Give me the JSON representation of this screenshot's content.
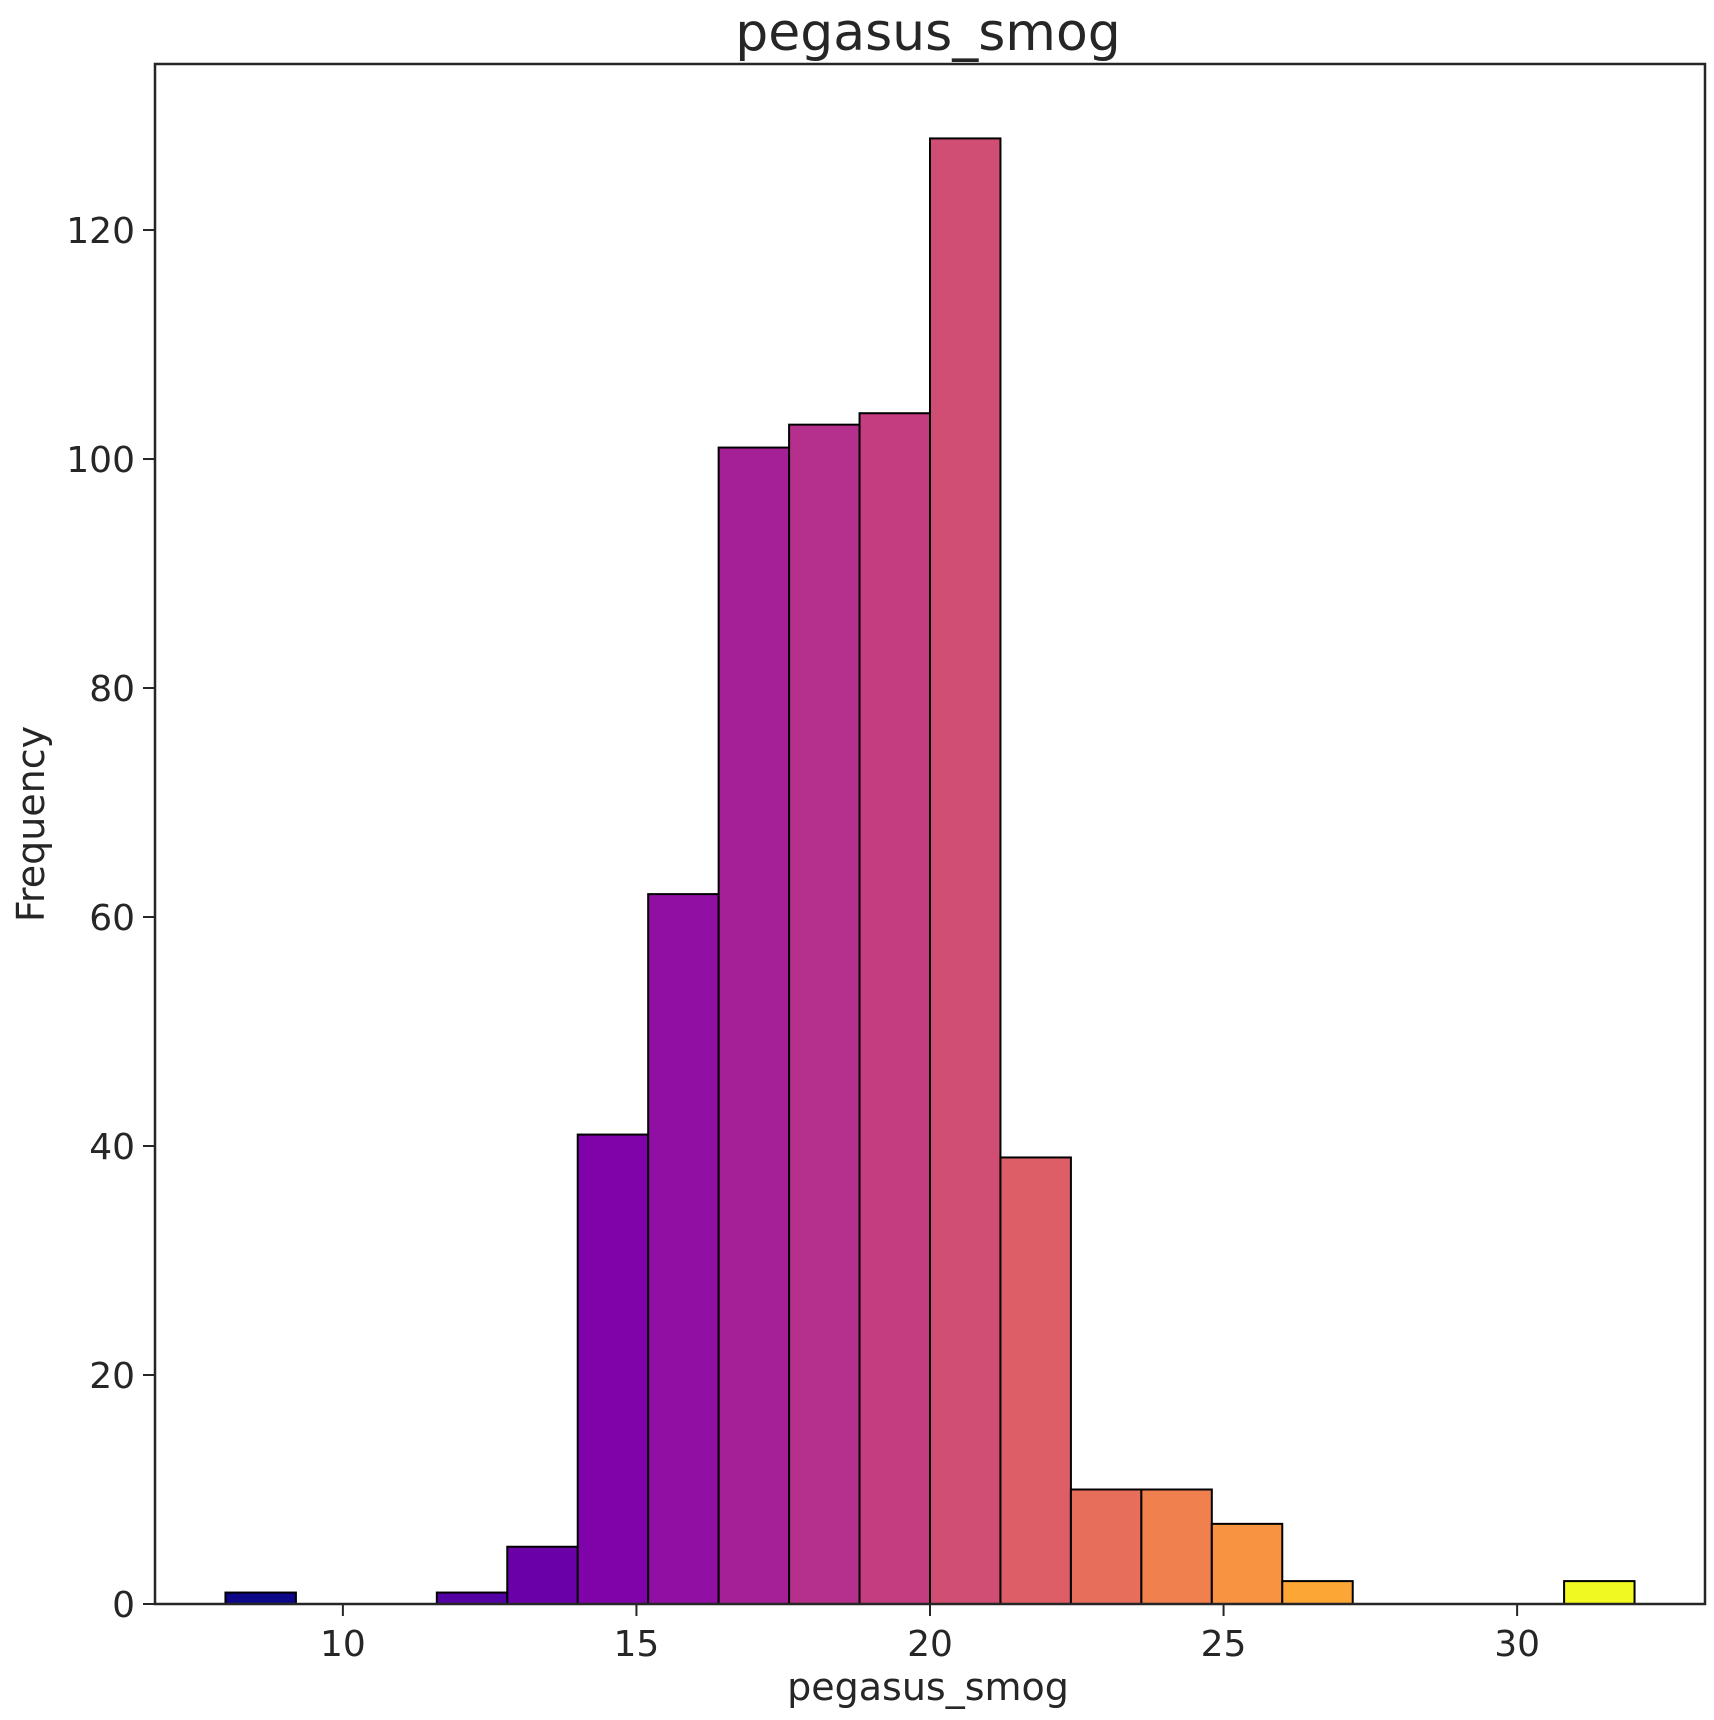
{
  "chart_data": {
    "type": "bar",
    "title": "pegasus_smog",
    "xlabel": "pegasus_smog",
    "ylabel": "Frequency",
    "xlim": [
      6.8,
      33.2
    ],
    "ylim": [
      0,
      134.5
    ],
    "xticks": [
      10,
      15,
      20,
      25,
      30
    ],
    "yticks": [
      0,
      20,
      40,
      60,
      80,
      100,
      120
    ],
    "bins": [
      {
        "x0": 8.0,
        "x1": 9.2,
        "value": 1,
        "color": "#0d0887"
      },
      {
        "x0": 9.2,
        "x1": 10.4,
        "value": 0,
        "color": "#2a0593"
      },
      {
        "x0": 10.4,
        "x1": 11.6,
        "value": 0,
        "color": "#41049d"
      },
      {
        "x0": 11.6,
        "x1": 12.8,
        "value": 1,
        "color": "#5402a3"
      },
      {
        "x0": 12.8,
        "x1": 14.0,
        "value": 5,
        "color": "#6a00a8"
      },
      {
        "x0": 14.0,
        "x1": 15.2,
        "value": 41,
        "color": "#7f03a8"
      },
      {
        "x0": 15.2,
        "x1": 16.4,
        "value": 62,
        "color": "#920fa3"
      },
      {
        "x0": 16.4,
        "x1": 17.6,
        "value": 101,
        "color": "#a51f97"
      },
      {
        "x0": 17.6,
        "x1": 18.8,
        "value": 103,
        "color": "#b52f8c"
      },
      {
        "x0": 18.8,
        "x1": 20.0,
        "value": 104,
        "color": "#c33d80"
      },
      {
        "x0": 20.0,
        "x1": 21.2,
        "value": 128,
        "color": "#d04e73"
      },
      {
        "x0": 21.2,
        "x1": 22.4,
        "value": 39,
        "color": "#dd5e66"
      },
      {
        "x0": 22.4,
        "x1": 23.6,
        "value": 10,
        "color": "#e76e5b"
      },
      {
        "x0": 23.6,
        "x1": 24.8,
        "value": 10,
        "color": "#f0804e"
      },
      {
        "x0": 24.8,
        "x1": 26.0,
        "value": 7,
        "color": "#f89441"
      },
      {
        "x0": 26.0,
        "x1": 27.2,
        "value": 2,
        "color": "#fca636"
      },
      {
        "x0": 27.2,
        "x1": 28.4,
        "value": 0,
        "color": "#fdbb2c"
      },
      {
        "x0": 28.4,
        "x1": 29.6,
        "value": 0,
        "color": "#fcce25"
      },
      {
        "x0": 29.6,
        "x1": 30.8,
        "value": 0,
        "color": "#f7e225"
      },
      {
        "x0": 30.8,
        "x1": 32.0,
        "value": 2,
        "color": "#f0f921"
      }
    ]
  }
}
